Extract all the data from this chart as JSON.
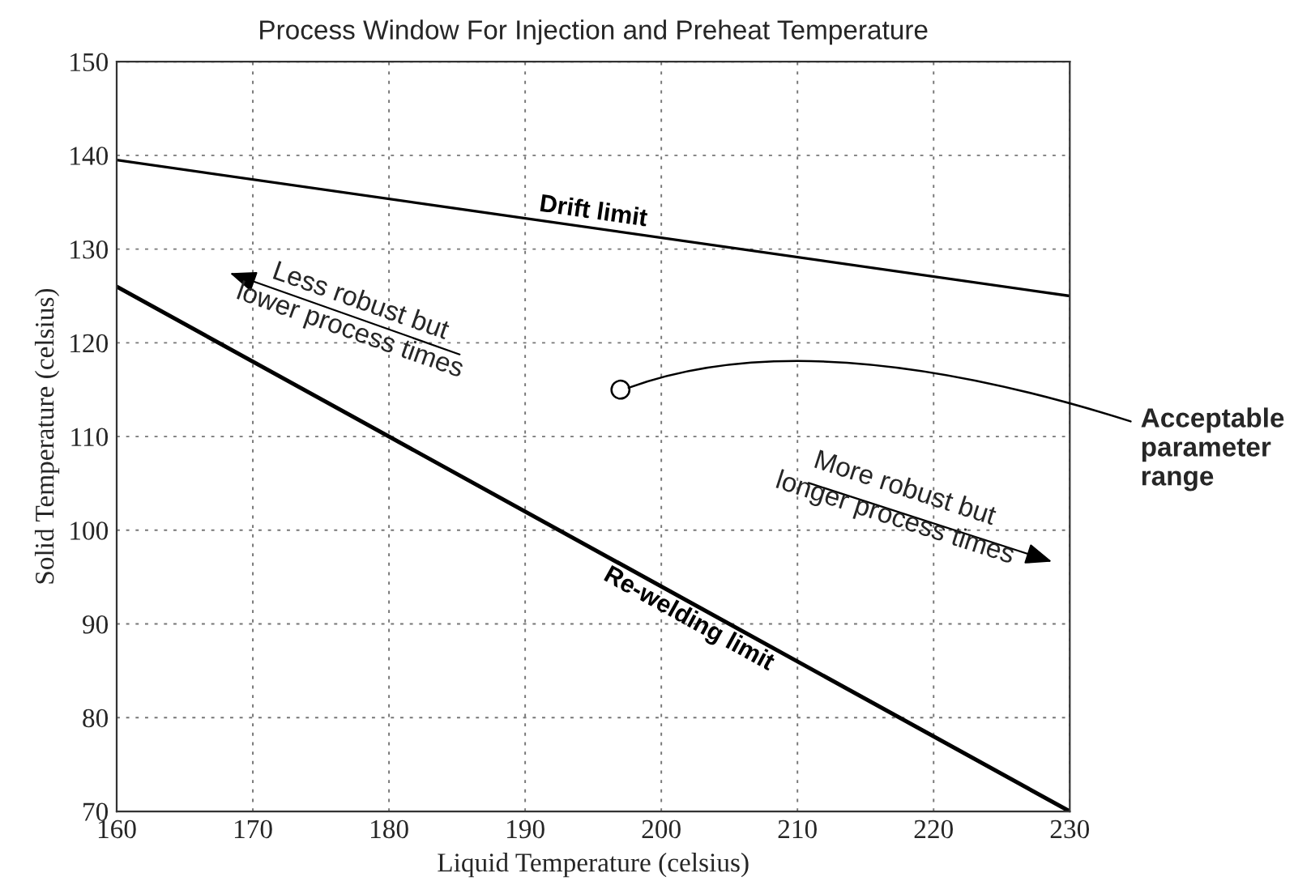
{
  "chart_data": {
    "type": "line",
    "title": "Process Window For Injection and Preheat Temperature",
    "xlabel": "Liquid Temperature (celsius)",
    "ylabel": "Solid Temperature (celsius)",
    "x": [
      160,
      230
    ],
    "series": [
      {
        "name": "Drift limit",
        "color": "#000000",
        "values": [
          139.5,
          125
        ]
      },
      {
        "name": "Re-welding limit",
        "color": "#000000",
        "values": [
          126,
          70
        ]
      }
    ],
    "xlim": [
      160,
      230
    ],
    "xticks": [
      160,
      170,
      180,
      190,
      200,
      210,
      220,
      230
    ],
    "ylim": [
      70,
      150
    ],
    "yticks": [
      70,
      80,
      90,
      100,
      110,
      120,
      130,
      140,
      150
    ],
    "grid": true,
    "line_style": "solid",
    "marker": "none",
    "annotations": [
      "Less robust but\nlower process times",
      "More robust but\nlonger process times",
      "Acceptable\nparameter\nrange"
    ]
  }
}
